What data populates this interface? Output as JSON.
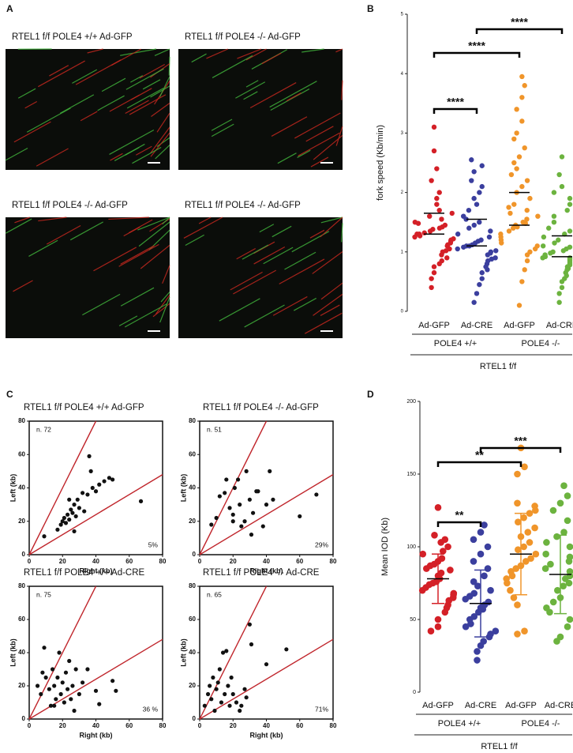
{
  "panel_labels": [
    "A",
    "B",
    "C",
    "D"
  ],
  "images": [
    {
      "title": "RTEL1 f/f  POLE4 +/+ Ad-GFP"
    },
    {
      "title": "RTEL1 f/f  POLE4 -/- Ad-GFP"
    },
    {
      "title": "RTEL1 f/f  POLE4 -/- Ad-GFP"
    },
    {
      "title": "RTEL1 f/f  POLE4 -/- Ad-GFP"
    }
  ],
  "chart_data": [
    {
      "type": "strip",
      "ylabel": "fork speed (Kb/min)",
      "ylim": [
        0,
        5
      ],
      "yticks": [
        0,
        1,
        2,
        3,
        4,
        5
      ],
      "categories": [
        "Ad-GFP",
        "Ad-CRE",
        "Ad-GFP",
        "Ad-CRE"
      ],
      "groups": [
        "POLE4 +/+",
        "POLE4 -/-"
      ],
      "group_title": "RTEL1 f/f",
      "colors": [
        "#d42027",
        "#3b3f9e",
        "#f0952a",
        "#6cb33f"
      ],
      "median": [
        1.3,
        1.1,
        1.45,
        0.92
      ],
      "upper_quartile": [
        1.65,
        1.55,
        2.0,
        1.27
      ],
      "comparisons": [
        {
          "from": 0,
          "to": 1,
          "label": "****"
        },
        {
          "from": 0,
          "to": 2,
          "label": "****"
        },
        {
          "from": 1,
          "to": 3,
          "label": "****"
        }
      ],
      "values": [
        [
          0.4,
          0.55,
          0.65,
          0.75,
          0.8,
          0.85,
          0.9,
          0.95,
          1.0,
          1.02,
          1.05,
          1.1,
          1.12,
          1.15,
          1.18,
          1.2,
          1.22,
          1.25,
          1.27,
          1.3,
          1.3,
          1.32,
          1.35,
          1.38,
          1.4,
          1.42,
          1.45,
          1.48,
          1.5,
          1.55,
          1.6,
          1.65,
          1.7,
          1.8,
          1.9,
          2.0,
          2.2,
          2.4,
          2.7,
          3.1
        ],
        [
          0.15,
          0.3,
          0.45,
          0.55,
          0.65,
          0.7,
          0.75,
          0.8,
          0.85,
          0.88,
          0.9,
          0.95,
          0.98,
          1.0,
          1.02,
          1.05,
          1.08,
          1.1,
          1.1,
          1.12,
          1.15,
          1.18,
          1.2,
          1.25,
          1.3,
          1.35,
          1.4,
          1.45,
          1.5,
          1.55,
          1.6,
          1.7,
          1.8,
          1.9,
          2.0,
          2.1,
          2.2,
          2.35,
          2.45,
          2.55
        ],
        [
          0.1,
          0.5,
          0.7,
          0.85,
          0.95,
          1.0,
          1.05,
          1.1,
          1.15,
          1.2,
          1.25,
          1.3,
          1.35,
          1.4,
          1.42,
          1.45,
          1.48,
          1.5,
          1.55,
          1.6,
          1.65,
          1.7,
          1.75,
          1.8,
          1.9,
          2.0,
          2.1,
          2.2,
          2.3,
          2.4,
          2.5,
          2.6,
          2.75,
          2.9,
          3.0,
          3.2,
          3.4,
          3.6,
          3.8,
          3.95
        ],
        [
          0.15,
          0.3,
          0.4,
          0.5,
          0.55,
          0.6,
          0.65,
          0.7,
          0.72,
          0.75,
          0.78,
          0.8,
          0.82,
          0.85,
          0.88,
          0.9,
          0.9,
          0.92,
          0.95,
          0.98,
          1.0,
          1.02,
          1.05,
          1.08,
          1.1,
          1.15,
          1.2,
          1.25,
          1.3,
          1.35,
          1.4,
          1.5,
          1.6,
          1.7,
          1.8,
          1.9,
          2.0,
          2.1,
          2.3,
          2.6
        ]
      ]
    },
    {
      "type": "scatter",
      "title": "RTEL1 f/f  POLE4 +/+ Ad-GFP",
      "xlabel": "Right (kb)",
      "ylabel": "Left (kb)",
      "n_label": "n. 72",
      "percent_label": "5%",
      "xlim": [
        0,
        80
      ],
      "ylim": [
        0,
        80
      ],
      "xticks": [
        0,
        20,
        40,
        60,
        80
      ],
      "yticks": [
        0,
        20,
        40,
        60,
        80
      ],
      "color": "#111111",
      "line_color": "#c0262c",
      "ref_slopes": [
        2,
        0.6
      ],
      "x": [
        9,
        17,
        19,
        20,
        21,
        22,
        23,
        24,
        25,
        26,
        27,
        28,
        29,
        30,
        27,
        32,
        36,
        38,
        40,
        42,
        45,
        48,
        50,
        35,
        37,
        67,
        24,
        33
      ],
      "y": [
        11,
        15,
        18,
        20,
        22,
        19,
        24,
        21,
        27,
        25,
        30,
        23,
        33,
        28,
        14,
        37,
        59,
        40,
        38,
        42,
        44,
        46,
        45,
        36,
        50,
        32,
        33,
        26
      ]
    },
    {
      "type": "scatter",
      "title": "RTEL1 f/f  POLE4 -/- Ad-GFP",
      "xlabel": "Right (kb)",
      "ylabel": "Left (kb)",
      "n_label": "n. 51",
      "percent_label": "29%",
      "xlim": [
        0,
        80
      ],
      "ylim": [
        0,
        80
      ],
      "xticks": [
        0,
        20,
        40,
        60,
        80
      ],
      "yticks": [
        0,
        20,
        40,
        60,
        80
      ],
      "color": "#111111",
      "line_color": "#c0262c",
      "ref_slopes": [
        2,
        0.6
      ],
      "x": [
        7,
        10,
        12,
        15,
        18,
        20,
        21,
        23,
        25,
        27,
        28,
        30,
        32,
        35,
        38,
        40,
        42,
        44,
        20,
        24,
        31,
        34,
        60,
        70,
        16
      ],
      "y": [
        18,
        22,
        35,
        37,
        28,
        24,
        40,
        45,
        17,
        20,
        50,
        33,
        25,
        38,
        17,
        30,
        50,
        33,
        20,
        30,
        12,
        38,
        23,
        36,
        45
      ]
    },
    {
      "type": "scatter",
      "title": "RTEL1 f/f  POLE4 +/+ Ad-CRE",
      "xlabel": "Right (kb)",
      "ylabel": "Left (kb)",
      "n_label": "n. 75",
      "percent_label": "36 %",
      "xlim": [
        0,
        80
      ],
      "ylim": [
        0,
        80
      ],
      "xticks": [
        0,
        20,
        40,
        60,
        80
      ],
      "yticks": [
        0,
        20,
        40,
        60,
        80
      ],
      "color": "#111111",
      "line_color": "#c0262c",
      "ref_slopes": [
        2,
        0.6
      ],
      "x": [
        5,
        7,
        9,
        10,
        12,
        13,
        14,
        15,
        16,
        17,
        18,
        19,
        20,
        21,
        22,
        23,
        24,
        25,
        26,
        28,
        30,
        32,
        35,
        40,
        42,
        50,
        52,
        8,
        15,
        27
      ],
      "y": [
        20,
        15,
        43,
        25,
        18,
        8,
        30,
        20,
        12,
        25,
        40,
        15,
        22,
        10,
        28,
        18,
        35,
        12,
        20,
        30,
        15,
        22,
        30,
        17,
        9,
        23,
        17,
        28,
        8,
        5
      ]
    },
    {
      "type": "scatter",
      "title": "RTEL1 f/f  POLE4 -/- Ad-CRE",
      "xlabel": "Right (kb)",
      "ylabel": "Left (kb)",
      "n_label": "n. 65",
      "percent_label": "71%",
      "xlim": [
        0,
        80
      ],
      "ylim": [
        0,
        80
      ],
      "xticks": [
        0,
        20,
        40,
        60,
        80
      ],
      "yticks": [
        0,
        20,
        40,
        60,
        80
      ],
      "color": "#111111",
      "line_color": "#c0262c",
      "ref_slopes": [
        2,
        0.6
      ],
      "x": [
        3,
        5,
        6,
        7,
        8,
        9,
        10,
        11,
        12,
        13,
        14,
        15,
        16,
        17,
        18,
        19,
        20,
        22,
        25,
        28,
        30,
        31,
        40,
        52,
        24,
        27
      ],
      "y": [
        8,
        15,
        20,
        12,
        25,
        5,
        18,
        22,
        30,
        10,
        40,
        15,
        41,
        20,
        8,
        25,
        15,
        10,
        8,
        13,
        57,
        45,
        33,
        42,
        5,
        18
      ]
    },
    {
      "type": "dot",
      "ylabel": "Mean IOD (Kb)",
      "ylim": [
        0,
        200
      ],
      "yticks": [
        0,
        50,
        100,
        150,
        200
      ],
      "categories": [
        "Ad-GFP",
        "Ad-CRE",
        "Ad-GFP",
        "Ad-CRE"
      ],
      "groups": [
        "POLE4 +/+",
        "POLE4 -/-"
      ],
      "group_title": "RTEL1 f/f",
      "colors": [
        "#d42027",
        "#3b3f9e",
        "#f0952a",
        "#6cb33f"
      ],
      "mean": [
        78,
        61,
        95,
        81
      ],
      "sd": [
        17,
        23,
        28,
        27
      ],
      "comparisons": [
        {
          "from": 0,
          "to": 1,
          "label": "**"
        },
        {
          "from": 0,
          "to": 2,
          "label": "**"
        },
        {
          "from": 1,
          "to": 3,
          "label": "***"
        }
      ],
      "values": [
        [
          42,
          45,
          50,
          55,
          58,
          60,
          63,
          65,
          67,
          68,
          70,
          72,
          74,
          75,
          76,
          78,
          80,
          82,
          84,
          85,
          87,
          88,
          90,
          92,
          95,
          97,
          100,
          103,
          105,
          108,
          127
        ],
        [
          22,
          28,
          32,
          35,
          38,
          40,
          42,
          45,
          47,
          50,
          52,
          55,
          57,
          58,
          60,
          62,
          64,
          66,
          68,
          70,
          73,
          76,
          80,
          85,
          90,
          95,
          100,
          105,
          110,
          115
        ],
        [
          40,
          42,
          60,
          65,
          70,
          75,
          78,
          80,
          83,
          85,
          87,
          90,
          92,
          95,
          98,
          100,
          103,
          107,
          110,
          113,
          117,
          120,
          123,
          125,
          128,
          130,
          150,
          155,
          168
        ],
        [
          35,
          38,
          45,
          50,
          55,
          58,
          62,
          65,
          70,
          73,
          75,
          78,
          80,
          83,
          85,
          88,
          90,
          93,
          95,
          100,
          103,
          107,
          110,
          118,
          125,
          130,
          135,
          142
        ]
      ]
    }
  ]
}
